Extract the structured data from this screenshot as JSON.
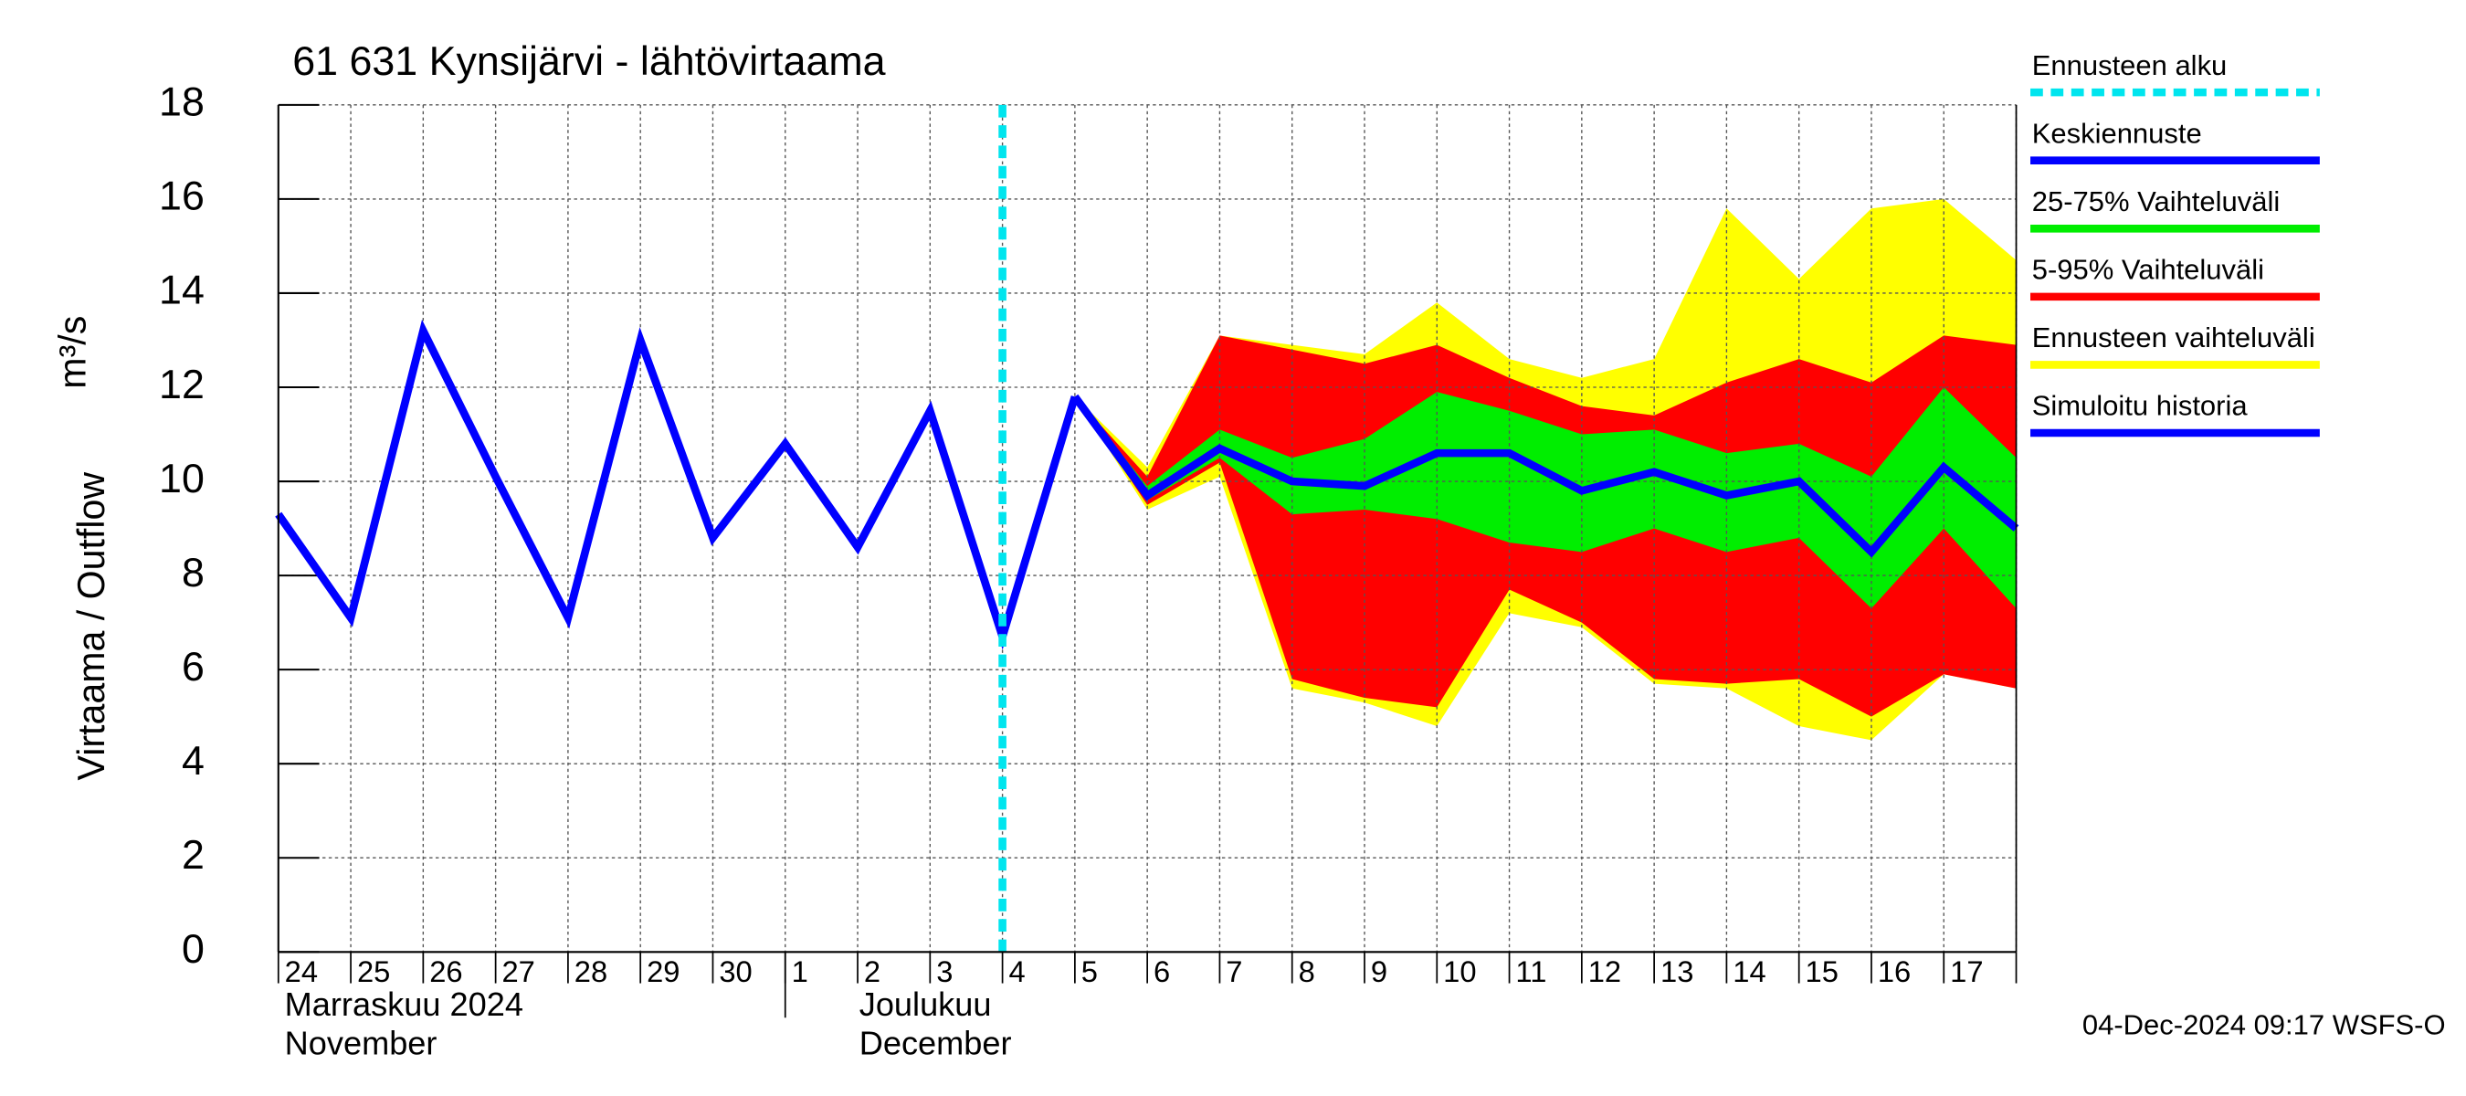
{
  "chart_data": {
    "type": "line",
    "title": "61 631 Kynsijärvi - lähtövirtaama",
    "y_label": "Virtaama / Outflow",
    "y_unit": "m³/s",
    "footer": "04-Dec-2024 09:17 WSFS-O",
    "months": [
      {
        "label": "Marraskuu 2024",
        "label_en": "November",
        "start": "24"
      },
      {
        "label": "Joulukuu",
        "label_en": "December",
        "start": "1"
      }
    ],
    "categories": [
      "24",
      "25",
      "26",
      "27",
      "28",
      "29",
      "30",
      "1",
      "2",
      "3",
      "4",
      "5",
      "6",
      "7",
      "8",
      "9",
      "10",
      "11",
      "12",
      "13",
      "14",
      "15",
      "16",
      "17",
      null
    ],
    "ylim": [
      0,
      18
    ],
    "yticks": [
      0,
      2,
      4,
      6,
      8,
      10,
      12,
      14,
      16,
      18
    ],
    "grid": true,
    "legend": "right",
    "series": [
      {
        "name": "Ennusteen alku",
        "kind": "vline",
        "color": "#00e5ee",
        "at": "4"
      },
      {
        "name": "Keskiennuste",
        "kind": "line",
        "color": "#0000ff",
        "values": [
          null,
          null,
          null,
          null,
          null,
          null,
          null,
          null,
          null,
          null,
          null,
          11.8,
          9.7,
          10.7,
          10.0,
          9.9,
          10.6,
          10.6,
          9.8,
          10.2,
          9.7,
          10.0,
          8.5,
          10.3,
          9.0
        ]
      },
      {
        "name": "25-75% Vaihteluväli",
        "kind": "band",
        "color": "#00ee00",
        "high": [
          null,
          null,
          null,
          null,
          null,
          null,
          null,
          null,
          null,
          null,
          null,
          11.8,
          9.9,
          11.1,
          10.5,
          10.9,
          11.9,
          11.5,
          11.0,
          11.1,
          10.6,
          10.8,
          10.1,
          12.0,
          10.5
        ],
        "low": [
          null,
          null,
          null,
          null,
          null,
          null,
          null,
          null,
          null,
          null,
          null,
          11.8,
          9.6,
          10.5,
          9.3,
          9.4,
          9.2,
          8.7,
          8.5,
          9.0,
          8.5,
          8.8,
          7.3,
          9.0,
          7.3
        ]
      },
      {
        "name": "5-95% Vaihteluväli",
        "kind": "band",
        "color": "#ff0000",
        "high": [
          null,
          null,
          null,
          null,
          null,
          null,
          null,
          null,
          null,
          null,
          null,
          11.8,
          10.1,
          13.1,
          12.8,
          12.5,
          12.9,
          12.2,
          11.6,
          11.4,
          12.1,
          12.6,
          12.1,
          13.1,
          12.9
        ],
        "low": [
          null,
          null,
          null,
          null,
          null,
          null,
          null,
          null,
          null,
          null,
          null,
          11.8,
          9.5,
          10.4,
          5.8,
          5.4,
          5.2,
          7.7,
          7.0,
          5.8,
          5.7,
          5.8,
          5.0,
          5.9,
          5.6
        ]
      },
      {
        "name": "Ennusteen vaihteluväli",
        "kind": "band",
        "color": "#ffff00",
        "high": [
          null,
          null,
          null,
          null,
          null,
          null,
          null,
          null,
          null,
          null,
          null,
          11.8,
          10.3,
          13.1,
          12.9,
          12.7,
          13.8,
          12.6,
          12.2,
          12.6,
          15.8,
          14.3,
          15.8,
          16.0,
          14.7
        ],
        "low": [
          null,
          null,
          null,
          null,
          null,
          null,
          null,
          null,
          null,
          null,
          null,
          11.8,
          9.4,
          10.1,
          5.6,
          5.3,
          4.8,
          7.2,
          6.9,
          5.7,
          5.6,
          4.8,
          4.5,
          5.9,
          5.6
        ]
      },
      {
        "name": "Simuloitu historia",
        "kind": "line",
        "color": "#0000ff",
        "values": [
          9.3,
          7.1,
          13.2,
          10.1,
          7.1,
          13.0,
          8.8,
          10.8,
          8.6,
          11.5,
          6.7,
          11.8,
          null,
          null,
          null,
          null,
          null,
          null,
          null,
          null,
          null,
          null,
          null,
          null,
          null
        ]
      }
    ]
  }
}
